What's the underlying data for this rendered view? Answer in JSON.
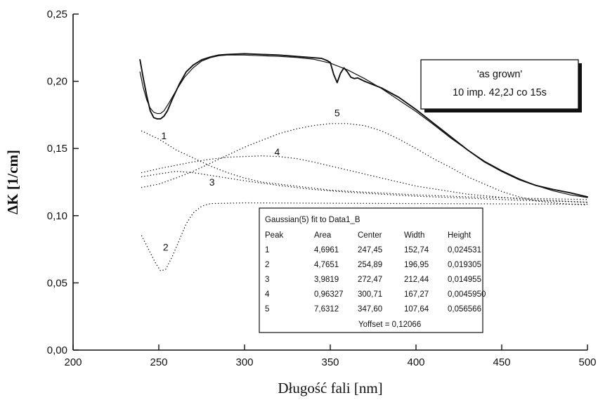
{
  "chart_data": {
    "type": "line",
    "xlabel": "Długość fali [nm]",
    "ylabel": "ΔK [1/cm]",
    "xlim": [
      200,
      500
    ],
    "ylim": [
      0,
      0.25
    ],
    "x_ticks": [
      "200",
      "250",
      "300",
      "350",
      "400",
      "450",
      "500"
    ],
    "y_ticks": [
      "0,00",
      "0,05",
      "0,10",
      "0,15",
      "0,20",
      "0,25"
    ],
    "grid": false,
    "legend": {
      "position": "top-right",
      "lines": [
        "'as grown'",
        "10 imp. 42,2J co 15s"
      ]
    },
    "series": [
      {
        "style": "solid",
        "points": [
          [
            239,
            0.216
          ],
          [
            241,
            0.202
          ],
          [
            243,
            0.189
          ],
          [
            245,
            0.178
          ],
          [
            247,
            0.173
          ],
          [
            249,
            0.172
          ],
          [
            251,
            0.172
          ],
          [
            253,
            0.174
          ],
          [
            255,
            0.178
          ],
          [
            258,
            0.187
          ],
          [
            262,
            0.198
          ],
          [
            266,
            0.207
          ],
          [
            270,
            0.212
          ],
          [
            275,
            0.216
          ],
          [
            280,
            0.218
          ],
          [
            285,
            0.2195
          ],
          [
            290,
            0.22
          ],
          [
            300,
            0.2205
          ],
          [
            310,
            0.22
          ],
          [
            320,
            0.2195
          ],
          [
            330,
            0.2185
          ],
          [
            340,
            0.2175
          ],
          [
            345,
            0.217
          ],
          [
            348,
            0.2155
          ],
          [
            350,
            0.214
          ],
          [
            352,
            0.205
          ],
          [
            354,
            0.199
          ],
          [
            356,
            0.206
          ],
          [
            358,
            0.21
          ],
          [
            360,
            0.207
          ],
          [
            362,
            0.203
          ],
          [
            364,
            0.202
          ],
          [
            366,
            0.2025
          ],
          [
            370,
            0.2
          ],
          [
            380,
            0.195
          ],
          [
            390,
            0.188
          ],
          [
            400,
            0.179
          ],
          [
            410,
            0.169
          ],
          [
            420,
            0.159
          ],
          [
            430,
            0.149
          ],
          [
            440,
            0.14
          ],
          [
            450,
            0.133
          ],
          [
            460,
            0.127
          ],
          [
            470,
            0.1225
          ],
          [
            480,
            0.1195
          ],
          [
            490,
            0.117
          ],
          [
            500,
            0.114
          ]
        ]
      },
      {
        "style": "solid-fit",
        "points": [
          [
            239,
            0.207
          ],
          [
            241,
            0.195
          ],
          [
            243,
            0.186
          ],
          [
            245,
            0.18
          ],
          [
            247,
            0.177
          ],
          [
            249,
            0.176
          ],
          [
            251,
            0.176
          ],
          [
            253,
            0.178
          ],
          [
            256,
            0.184
          ],
          [
            260,
            0.193
          ],
          [
            265,
            0.203
          ],
          [
            270,
            0.21
          ],
          [
            275,
            0.215
          ],
          [
            280,
            0.2175
          ],
          [
            285,
            0.219
          ],
          [
            290,
            0.2195
          ],
          [
            300,
            0.2195
          ],
          [
            310,
            0.219
          ],
          [
            320,
            0.2185
          ],
          [
            330,
            0.2178
          ],
          [
            340,
            0.2165
          ],
          [
            350,
            0.2135
          ],
          [
            360,
            0.2085
          ],
          [
            370,
            0.202
          ],
          [
            380,
            0.1945
          ],
          [
            390,
            0.186
          ],
          [
            400,
            0.1775
          ],
          [
            410,
            0.168
          ],
          [
            420,
            0.158
          ],
          [
            430,
            0.149
          ],
          [
            440,
            0.1405
          ],
          [
            450,
            0.1335
          ],
          [
            460,
            0.1275
          ],
          [
            470,
            0.1225
          ],
          [
            480,
            0.1185
          ],
          [
            490,
            0.1155
          ],
          [
            500,
            0.1135
          ]
        ]
      },
      {
        "name": "1",
        "style": "dotted",
        "points": [
          [
            240,
            0.163
          ],
          [
            250,
            0.157
          ],
          [
            260,
            0.149
          ],
          [
            270,
            0.143
          ],
          [
            280,
            0.137
          ],
          [
            290,
            0.132
          ],
          [
            300,
            0.128
          ],
          [
            310,
            0.125
          ],
          [
            320,
            0.1235
          ],
          [
            330,
            0.122
          ],
          [
            340,
            0.1205
          ],
          [
            350,
            0.119
          ],
          [
            370,
            0.1175
          ],
          [
            400,
            0.1155
          ],
          [
            430,
            0.114
          ],
          [
            460,
            0.113
          ],
          [
            500,
            0.112
          ]
        ]
      },
      {
        "name": "2",
        "style": "dotted",
        "points": [
          [
            240,
            0.085
          ],
          [
            244,
            0.075
          ],
          [
            248,
            0.065
          ],
          [
            251,
            0.059
          ],
          [
            254,
            0.06
          ],
          [
            258,
            0.07
          ],
          [
            262,
            0.082
          ],
          [
            266,
            0.094
          ],
          [
            270,
            0.102
          ],
          [
            275,
            0.107
          ],
          [
            280,
            0.109
          ],
          [
            300,
            0.1095
          ],
          [
            400,
            0.109
          ],
          [
            500,
            0.1085
          ]
        ]
      },
      {
        "name": "3",
        "style": "dotted",
        "points": [
          [
            240,
            0.129
          ],
          [
            250,
            0.131
          ],
          [
            260,
            0.133
          ],
          [
            270,
            0.132
          ],
          [
            280,
            0.13
          ],
          [
            290,
            0.128
          ],
          [
            300,
            0.126
          ],
          [
            320,
            0.1225
          ],
          [
            340,
            0.1195
          ],
          [
            360,
            0.1175
          ],
          [
            380,
            0.116
          ],
          [
            400,
            0.1145
          ],
          [
            430,
            0.113
          ],
          [
            460,
            0.1115
          ],
          [
            500,
            0.11
          ]
        ]
      },
      {
        "name": "4",
        "style": "dotted",
        "points": [
          [
            240,
            0.132
          ],
          [
            250,
            0.135
          ],
          [
            260,
            0.1375
          ],
          [
            270,
            0.14
          ],
          [
            280,
            0.142
          ],
          [
            290,
            0.1435
          ],
          [
            300,
            0.144
          ],
          [
            310,
            0.1445
          ],
          [
            320,
            0.144
          ],
          [
            330,
            0.1425
          ],
          [
            340,
            0.14
          ],
          [
            350,
            0.137
          ],
          [
            360,
            0.134
          ],
          [
            380,
            0.128
          ],
          [
            400,
            0.122
          ],
          [
            430,
            0.116
          ],
          [
            460,
            0.1125
          ],
          [
            500,
            0.11
          ]
        ]
      },
      {
        "name": "5",
        "style": "dotted",
        "points": [
          [
            240,
            0.121
          ],
          [
            250,
            0.1235
          ],
          [
            260,
            0.128
          ],
          [
            270,
            0.133
          ],
          [
            280,
            0.139
          ],
          [
            290,
            0.145
          ],
          [
            300,
            0.151
          ],
          [
            310,
            0.156
          ],
          [
            320,
            0.161
          ],
          [
            330,
            0.1645
          ],
          [
            340,
            0.167
          ],
          [
            350,
            0.1685
          ],
          [
            360,
            0.1685
          ],
          [
            370,
            0.167
          ],
          [
            380,
            0.163
          ],
          [
            390,
            0.157
          ],
          [
            400,
            0.15
          ],
          [
            410,
            0.1425
          ],
          [
            420,
            0.136
          ],
          [
            430,
            0.129
          ],
          [
            440,
            0.1235
          ],
          [
            450,
            0.118
          ],
          [
            460,
            0.114
          ],
          [
            470,
            0.111
          ],
          [
            480,
            0.1095
          ],
          [
            490,
            0.1085
          ],
          [
            500,
            0.108
          ]
        ]
      }
    ],
    "peak_labels": [
      {
        "text": "1",
        "x": 253,
        "y": 0.157
      },
      {
        "text": "2",
        "x": 254,
        "y": 0.074
      },
      {
        "text": "3",
        "x": 281,
        "y": 0.1225
      },
      {
        "text": "4",
        "x": 319,
        "y": 0.145
      },
      {
        "text": "5",
        "x": 354,
        "y": 0.174
      }
    ],
    "fit_table": {
      "title": "Gaussian(5) fit to Data1_B",
      "headers": [
        "Peak",
        "Area",
        "Center",
        "Width",
        "Height"
      ],
      "rows": [
        [
          "1",
          "4,6961",
          "247,45",
          "152,74",
          "0,024531"
        ],
        [
          "2",
          "4,7651",
          "254,89",
          "196,95",
          "0,019305"
        ],
        [
          "3",
          "3,9819",
          "272,47",
          "212,44",
          "0,014955"
        ],
        [
          "4",
          "0,96327",
          "300,71",
          "167,27",
          "0,0045950"
        ],
        [
          "5",
          "7,6312",
          "347,60",
          "107,64",
          "0,056566"
        ]
      ],
      "footer": "Yoffset = 0,12066"
    }
  }
}
